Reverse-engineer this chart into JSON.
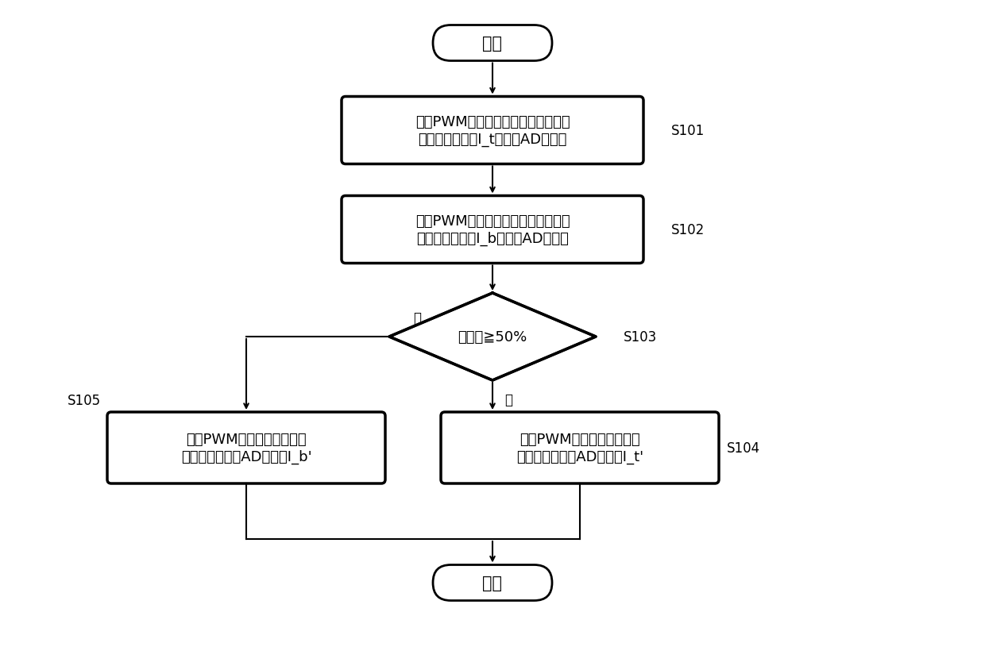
{
  "bg_color": "#ffffff",
  "text_color": "#000000",
  "box_edge_color": "#000000",
  "box_face_color": "#ffffff",
  "arrow_color": "#000000",
  "fig_width": 12.4,
  "fig_height": 8.45,
  "start_end_text": [
    "开始",
    "结束"
  ],
  "step_labels": [
    "S101",
    "S102",
    "S103",
    "S104",
    "S105"
  ],
  "step_texts": [
    "在当PWM计数器值变成最大值的定时\n处将相位电流值I_t转换成AD转换值",
    "在当PWM计数器值变成最小值的定时\n处将相位电流值I_b转换成AD转换值",
    "占空比≧50%",
    "在当PWM计数器值变成最大\n值的定时处输出AD转换值I_t'",
    "在当PWM计数器值变成最小\n值的定时处输出AD转换值I_b'"
  ],
  "yes_label": "是",
  "no_label": "否",
  "font_family": "SimHei",
  "font_size_main": 13,
  "font_size_label": 12,
  "font_size_startend": 15
}
